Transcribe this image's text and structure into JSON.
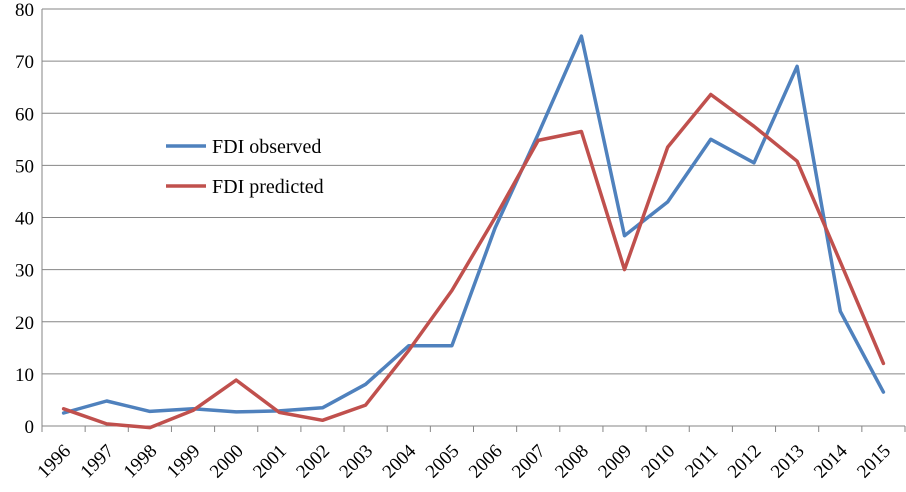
{
  "chart_data": {
    "type": "line",
    "title": "",
    "xlabel": "",
    "ylabel": "",
    "x": [
      "1996",
      "1997",
      "1998",
      "1999",
      "2000",
      "2001",
      "2002",
      "2003",
      "2004",
      "2005",
      "2006",
      "2007",
      "2008",
      "2009",
      "2010",
      "2011",
      "2012",
      "2013",
      "2014",
      "2015"
    ],
    "ylim": [
      0,
      80
    ],
    "yticks": [
      0,
      10,
      20,
      30,
      40,
      50,
      60,
      70,
      80
    ],
    "grid": true,
    "legend_position": "left",
    "series": [
      {
        "name": "FDI observed",
        "color": "#4f81bd",
        "values": [
          2.5,
          4.8,
          2.8,
          3.3,
          2.7,
          2.9,
          3.5,
          8.0,
          15.4,
          15.4,
          38.0,
          56.0,
          74.8,
          36.5,
          43.0,
          55.0,
          50.5,
          69.0,
          22.0,
          6.5
        ]
      },
      {
        "name": "FDI predicted",
        "color": "#c0504d",
        "values": [
          3.3,
          0.4,
          -0.3,
          3.0,
          8.8,
          2.6,
          1.1,
          4.0,
          14.5,
          26.0,
          40.0,
          54.8,
          56.5,
          30.0,
          53.5,
          63.6,
          57.5,
          50.8,
          31.5,
          12.0
        ]
      }
    ]
  }
}
